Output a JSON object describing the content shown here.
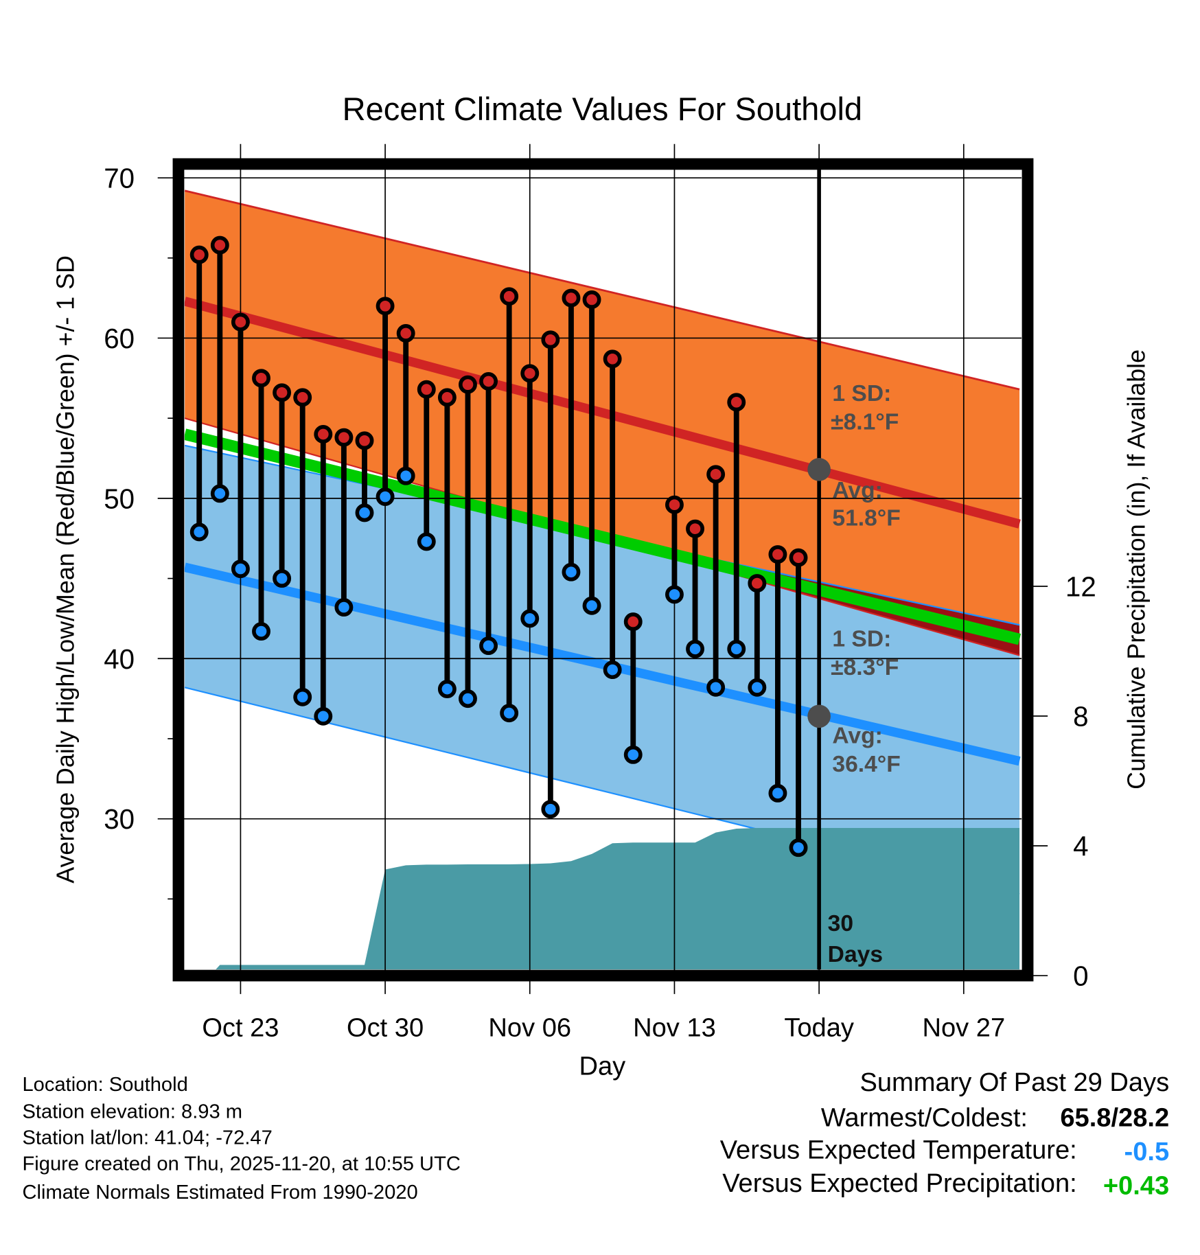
{
  "chart_data": {
    "type": "line",
    "title": "Recent Climate Values For Southold",
    "xlabel": "Day",
    "ylabel": "Average Daily High/Low/Mean (Red/Blue/Green) +/- 1 SD",
    "y2label": "Cumulative Precipitation (in), If Available",
    "ylim": [
      20.5,
      70.9
    ],
    "yticks": [
      30,
      40,
      50,
      60,
      70
    ],
    "y2ticks": [
      0,
      4,
      8,
      12
    ],
    "x_start_date": "Oct 21",
    "xlim_days": [
      -0.7,
      39.7
    ],
    "xticks": [
      {
        "day": 2,
        "label": "Oct 23"
      },
      {
        "day": 9,
        "label": "Oct 30"
      },
      {
        "day": 16,
        "label": "Nov 06"
      },
      {
        "day": 23,
        "label": "Nov 13"
      },
      {
        "day": 30,
        "label": "Today"
      },
      {
        "day": 37,
        "label": "Nov 27"
      }
    ],
    "grid": true,
    "dates": [
      "Oct 21",
      "Oct 22",
      "Oct 23",
      "Oct 24",
      "Oct 25",
      "Oct 26",
      "Oct 27",
      "Oct 28",
      "Oct 29",
      "Oct 30",
      "Oct 31",
      "Nov 01",
      "Nov 02",
      "Nov 03",
      "Nov 04",
      "Nov 05",
      "Nov 06",
      "Nov 07",
      "Nov 08",
      "Nov 09",
      "Nov 10",
      "Nov 11",
      "Nov 12",
      "Nov 13",
      "Nov 14",
      "Nov 15",
      "Nov 16",
      "Nov 17",
      "Nov 18",
      "Nov 19"
    ],
    "series": [
      {
        "name": "Daily High",
        "color": "#d02424",
        "values": [
          65.2,
          65.8,
          61.0,
          57.5,
          56.6,
          56.3,
          54.0,
          53.8,
          53.6,
          62.0,
          60.3,
          56.8,
          56.3,
          57.1,
          57.3,
          62.6,
          57.8,
          59.9,
          62.5,
          62.4,
          58.7,
          42.3,
          null,
          49.6,
          48.1,
          51.5,
          56.0,
          44.7,
          46.5,
          46.3
        ]
      },
      {
        "name": "Daily Low",
        "color": "#1e90ff",
        "values": [
          47.9,
          50.3,
          45.6,
          41.7,
          45.0,
          37.6,
          36.4,
          43.2,
          49.1,
          50.1,
          51.4,
          47.3,
          38.1,
          37.5,
          40.8,
          36.6,
          42.5,
          30.6,
          45.4,
          43.3,
          39.3,
          34.0,
          null,
          44.0,
          40.6,
          38.2,
          40.6,
          38.2,
          31.6,
          28.2
        ]
      },
      {
        "name": "Cumulative Precipitation (in)",
        "color": "#4a9ba5",
        "axis": "right",
        "values": [
          0,
          0.33,
          0.33,
          0.33,
          0.33,
          0.33,
          0.33,
          0.33,
          0.33,
          3.27,
          3.4,
          3.42,
          3.42,
          3.43,
          3.43,
          3.43,
          3.44,
          3.46,
          3.53,
          3.75,
          4.08,
          4.1,
          4.1,
          4.1,
          4.1,
          4.41,
          4.53,
          4.55,
          4.55,
          4.55
        ]
      }
    ],
    "normals": {
      "high_avg": [
        62.3,
        48.4
      ],
      "high_upper": [
        69.2,
        56.8
      ],
      "high_lower": [
        55.0,
        40.2
      ],
      "low_avg": [
        45.7,
        33.6
      ],
      "low_upper": [
        53.3,
        42.1
      ],
      "low_lower": [
        38.2,
        25.3
      ],
      "mean": [
        54.0,
        41.2
      ],
      "colors": {
        "high_band": "#f57a2e",
        "high_line": "#d02424",
        "low_band": "#85c1e8",
        "low_line": "#1e90ff",
        "mean_line": "#00cc00",
        "overlap": "#9b0f14"
      }
    },
    "annotations": {
      "high_sd_label": "1 SD:",
      "high_sd_value": "±8.1°F",
      "high_avg_label": "Avg:",
      "high_avg_value": "51.8°F",
      "high_avg_today": 51.8,
      "low_sd_label": "1 SD:",
      "low_sd_value": "±8.3°F",
      "low_avg_label": "Avg:",
      "low_avg_value": "36.4°F",
      "low_avg_today": 36.4,
      "period_line1": "30",
      "period_line2": "Days"
    }
  },
  "info": {
    "location": "Location: Southold",
    "elevation": "Station elevation: 8.93 m",
    "latlon": "Station lat/lon: 41.04; -72.47",
    "created": "Figure created on Thu, 2025-11-20, at 10:55 UTC",
    "normals": "Climate Normals Estimated From 1990-2020"
  },
  "summary": {
    "title": "Summary Of Past 29 Days",
    "warmest_label": "Warmest/Coldest:",
    "warmest_value": "65.8/28.2",
    "temp_label": "Versus Expected Temperature:",
    "temp_value": "-0.5",
    "temp_color": "#1e90ff",
    "precip_label": "Versus Expected Precipitation:",
    "precip_value": "+0.43",
    "precip_color": "#00bb00"
  }
}
